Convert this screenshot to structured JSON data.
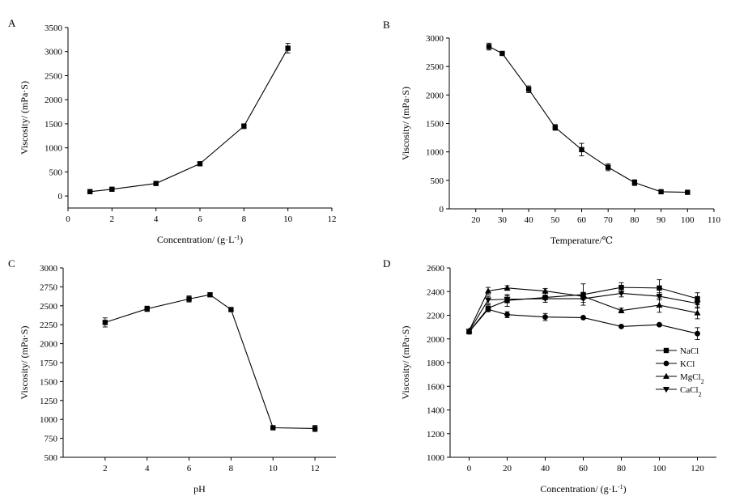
{
  "chart_data": [
    {
      "panel": "A",
      "type": "line",
      "xlabel": "Concentration/ (g·L",
      "xlabel_sup": "-1",
      "xlabel_end": ")",
      "ylabel": "Viscosity/ (mPa·S)",
      "xlim": [
        0,
        12
      ],
      "ylim": [
        -250,
        3500
      ],
      "xticks": [
        0,
        2,
        4,
        6,
        8,
        10,
        12
      ],
      "yticks": [
        0,
        500,
        1000,
        1500,
        2000,
        2500,
        3000,
        3500
      ],
      "series": [
        {
          "name": "viscosity",
          "marker": "square",
          "x": [
            1,
            2,
            4,
            6,
            8,
            10
          ],
          "y": [
            90,
            140,
            260,
            670,
            1450,
            3070
          ],
          "err": [
            10,
            12,
            20,
            25,
            50,
            100
          ]
        }
      ]
    },
    {
      "panel": "B",
      "type": "line",
      "xlabel": "Temperature/℃",
      "ylabel": "Viscosity/ (mPa·S)",
      "xlim": [
        10,
        110
      ],
      "ylim": [
        0,
        3000
      ],
      "xticks": [
        20,
        30,
        40,
        50,
        60,
        70,
        80,
        90,
        100,
        110
      ],
      "yticks": [
        0,
        500,
        1000,
        1500,
        2000,
        2500,
        3000
      ],
      "series": [
        {
          "name": "viscosity",
          "marker": "square",
          "x": [
            25,
            30,
            40,
            50,
            60,
            70,
            80,
            90,
            100
          ],
          "y": [
            2850,
            2730,
            2100,
            1430,
            1040,
            730,
            460,
            300,
            290
          ],
          "err": [
            60,
            15,
            60,
            50,
            110,
            60,
            50,
            15,
            10
          ]
        }
      ]
    },
    {
      "panel": "C",
      "type": "line",
      "xlabel": "pH",
      "ylabel": "Viscosity/ (mPa·S)",
      "xlim": [
        0,
        13
      ],
      "ylim": [
        500,
        3000
      ],
      "xticks": [
        2,
        4,
        6,
        8,
        10,
        12
      ],
      "yticks": [
        500,
        750,
        1000,
        1250,
        1500,
        1750,
        2000,
        2250,
        2500,
        2750,
        3000
      ],
      "series": [
        {
          "name": "viscosity",
          "marker": "square",
          "x": [
            2,
            4,
            6,
            7,
            8,
            10,
            12
          ],
          "y": [
            2280,
            2460,
            2590,
            2645,
            2450,
            890,
            880
          ],
          "err": [
            60,
            35,
            40,
            15,
            15,
            10,
            40
          ]
        }
      ]
    },
    {
      "panel": "D",
      "type": "line",
      "xlabel": "Concentration/ (g·L",
      "xlabel_sup": "-1",
      "xlabel_end": ")",
      "ylabel": "Viscosity/ (mPa·S)",
      "xlim": [
        -10,
        130
      ],
      "ylim": [
        1000,
        2600
      ],
      "xticks": [
        0,
        20,
        40,
        60,
        80,
        100,
        120
      ],
      "yticks": [
        1000,
        1200,
        1400,
        1600,
        1800,
        2000,
        2200,
        2400,
        2600
      ],
      "legend_position": "center-right",
      "series": [
        {
          "name": "NaCl",
          "label": "NaCl",
          "sub": "",
          "marker": "square",
          "x": [
            0,
            10,
            20,
            40,
            60,
            80,
            100,
            120
          ],
          "y": [
            2060,
            2260,
            2325,
            2350,
            2375,
            2435,
            2430,
            2340
          ],
          "err": [
            10,
            30,
            50,
            40,
            90,
            40,
            70,
            50
          ]
        },
        {
          "name": "KCl",
          "label": "KCl",
          "sub": "",
          "marker": "circle",
          "x": [
            0,
            10,
            20,
            40,
            60,
            80,
            100,
            120
          ],
          "y": [
            2060,
            2250,
            2205,
            2185,
            2180,
            2105,
            2120,
            2045
          ],
          "err": [
            10,
            20,
            25,
            30,
            10,
            10,
            10,
            50
          ]
        },
        {
          "name": "MgCl2",
          "label": "MgCl",
          "sub": "2",
          "marker": "triangle-up",
          "x": [
            0,
            10,
            20,
            40,
            60,
            80,
            100,
            120
          ],
          "y": [
            2070,
            2405,
            2430,
            2405,
            2360,
            2240,
            2285,
            2220
          ],
          "err": [
            10,
            30,
            20,
            20,
            30,
            20,
            60,
            50
          ]
        },
        {
          "name": "CaCl2",
          "label": "CaCl",
          "sub": "2",
          "marker": "triangle-down",
          "x": [
            0,
            10,
            20,
            40,
            60,
            80,
            100,
            120
          ],
          "y": [
            2065,
            2330,
            2335,
            2340,
            2340,
            2385,
            2360,
            2300
          ],
          "err": [
            10,
            30,
            30,
            30,
            30,
            30,
            30,
            40
          ]
        }
      ]
    }
  ]
}
